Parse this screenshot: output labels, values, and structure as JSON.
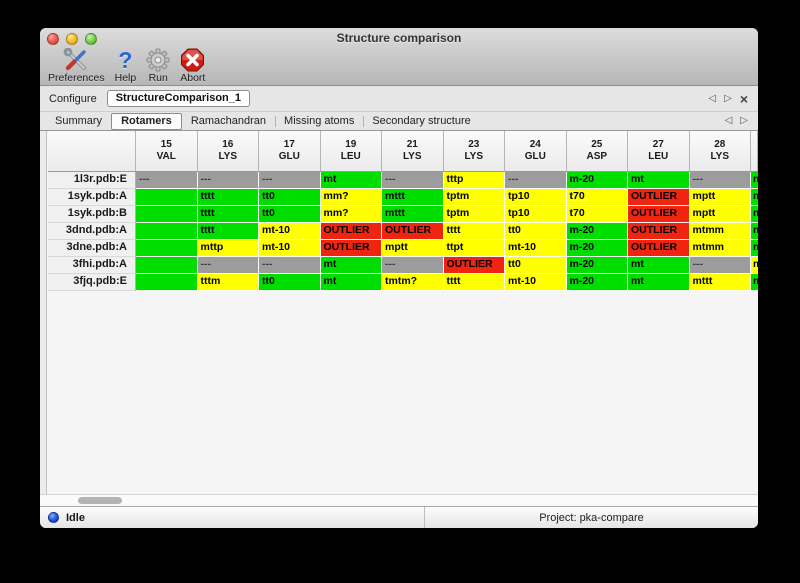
{
  "window": {
    "title": "Structure comparison"
  },
  "toolbar": {
    "items": [
      {
        "id": "preferences",
        "label": "Preferences",
        "icon": "tools-icon"
      },
      {
        "id": "help",
        "label": "Help",
        "icon": "help-icon"
      },
      {
        "id": "run",
        "label": "Run",
        "icon": "gear-icon"
      },
      {
        "id": "abort",
        "label": "Abort",
        "icon": "abort-icon"
      }
    ]
  },
  "configure": {
    "label": "Configure",
    "value": "StructureComparison_1",
    "prev": "◁",
    "next": "▷",
    "close": "×"
  },
  "tabs": {
    "active": "Rotamers",
    "items": [
      "Summary",
      "Rotamers",
      "Ramachandran",
      "Missing atoms",
      "Secondary structure"
    ],
    "prev": "◁",
    "next": "▷"
  },
  "colors": {
    "ok": "#00DE00",
    "warn": "#FFFF00",
    "outlier": "#EF2512",
    "none": "#9C9C9C"
  },
  "table": {
    "columns": [
      {
        "num": "15",
        "res": "VAL"
      },
      {
        "num": "16",
        "res": "LYS"
      },
      {
        "num": "17",
        "res": "GLU"
      },
      {
        "num": "19",
        "res": "LEU"
      },
      {
        "num": "21",
        "res": "LYS"
      },
      {
        "num": "23",
        "res": "LYS"
      },
      {
        "num": "24",
        "res": "GLU"
      },
      {
        "num": "25",
        "res": "ASP"
      },
      {
        "num": "27",
        "res": "LEU"
      },
      {
        "num": "28",
        "res": "LYS"
      }
    ],
    "rows": [
      {
        "label": "1l3r.pdb:E",
        "cells": [
          {
            "text": "---",
            "status": "none"
          },
          {
            "text": "---",
            "status": "none"
          },
          {
            "text": "---",
            "status": "none"
          },
          {
            "text": "mt",
            "status": "ok"
          },
          {
            "text": "---",
            "status": "none"
          },
          {
            "text": "tttp",
            "status": "warn"
          },
          {
            "text": "---",
            "status": "none"
          },
          {
            "text": "m-20",
            "status": "ok"
          },
          {
            "text": "mt",
            "status": "ok"
          },
          {
            "text": "---",
            "status": "none"
          }
        ],
        "partial": {
          "text": "m",
          "status": "ok"
        }
      },
      {
        "label": "1syk.pdb:A",
        "cells": [
          {
            "text": "",
            "status": "ok"
          },
          {
            "text": "tttt",
            "status": "ok"
          },
          {
            "text": "tt0",
            "status": "ok"
          },
          {
            "text": "mm?",
            "status": "warn"
          },
          {
            "text": "mttt",
            "status": "ok"
          },
          {
            "text": "tptm",
            "status": "warn"
          },
          {
            "text": "tp10",
            "status": "warn"
          },
          {
            "text": "t70",
            "status": "warn"
          },
          {
            "text": "OUTLIER",
            "status": "outlier"
          },
          {
            "text": "mptt",
            "status": "warn"
          }
        ],
        "partial": {
          "text": "m",
          "status": "ok"
        }
      },
      {
        "label": "1syk.pdb:B",
        "cells": [
          {
            "text": "",
            "status": "ok"
          },
          {
            "text": "tttt",
            "status": "ok"
          },
          {
            "text": "tt0",
            "status": "ok"
          },
          {
            "text": "mm?",
            "status": "warn"
          },
          {
            "text": "mttt",
            "status": "ok"
          },
          {
            "text": "tptm",
            "status": "warn"
          },
          {
            "text": "tp10",
            "status": "warn"
          },
          {
            "text": "t70",
            "status": "warn"
          },
          {
            "text": "OUTLIER",
            "status": "outlier"
          },
          {
            "text": "mptt",
            "status": "warn"
          }
        ],
        "partial": {
          "text": "m",
          "status": "ok"
        }
      },
      {
        "label": "3dnd.pdb:A",
        "cells": [
          {
            "text": "",
            "status": "ok"
          },
          {
            "text": "tttt",
            "status": "ok"
          },
          {
            "text": "mt-10",
            "status": "warn"
          },
          {
            "text": "OUTLIER",
            "status": "outlier"
          },
          {
            "text": "OUTLIER",
            "status": "outlier"
          },
          {
            "text": "tttt",
            "status": "warn"
          },
          {
            "text": "tt0",
            "status": "warn"
          },
          {
            "text": "m-20",
            "status": "ok"
          },
          {
            "text": "OUTLIER",
            "status": "outlier"
          },
          {
            "text": "mtmm",
            "status": "warn"
          }
        ],
        "partial": {
          "text": "m",
          "status": "ok"
        }
      },
      {
        "label": "3dne.pdb:A",
        "cells": [
          {
            "text": "",
            "status": "ok"
          },
          {
            "text": "mttp",
            "status": "warn"
          },
          {
            "text": "mt-10",
            "status": "warn"
          },
          {
            "text": "OUTLIER",
            "status": "outlier"
          },
          {
            "text": "mptt",
            "status": "warn"
          },
          {
            "text": "ttpt",
            "status": "warn"
          },
          {
            "text": "mt-10",
            "status": "warn"
          },
          {
            "text": "m-20",
            "status": "ok"
          },
          {
            "text": "OUTLIER",
            "status": "outlier"
          },
          {
            "text": "mtmm",
            "status": "warn"
          }
        ],
        "partial": {
          "text": "m",
          "status": "ok"
        }
      },
      {
        "label": "3fhi.pdb:A",
        "cells": [
          {
            "text": "",
            "status": "ok"
          },
          {
            "text": "---",
            "status": "none"
          },
          {
            "text": "---",
            "status": "none"
          },
          {
            "text": "mt",
            "status": "ok"
          },
          {
            "text": "---",
            "status": "none"
          },
          {
            "text": "OUTLIER",
            "status": "outlier"
          },
          {
            "text": "tt0",
            "status": "warn"
          },
          {
            "text": "m-20",
            "status": "ok"
          },
          {
            "text": "mt",
            "status": "ok"
          },
          {
            "text": "---",
            "status": "none"
          }
        ],
        "partial": {
          "text": "m",
          "status": "warn"
        }
      },
      {
        "label": "3fjq.pdb:E",
        "cells": [
          {
            "text": "",
            "status": "ok"
          },
          {
            "text": "tttm",
            "status": "warn"
          },
          {
            "text": "tt0",
            "status": "ok"
          },
          {
            "text": "mt",
            "status": "ok"
          },
          {
            "text": "tmtm?",
            "status": "warn"
          },
          {
            "text": "tttt",
            "status": "warn"
          },
          {
            "text": "mt-10",
            "status": "warn"
          },
          {
            "text": "m-20",
            "status": "ok"
          },
          {
            "text": "mt",
            "status": "ok"
          },
          {
            "text": "mttt",
            "status": "warn"
          }
        ],
        "partial": {
          "text": "m",
          "status": "ok"
        }
      }
    ]
  },
  "statusbar": {
    "state": "Idle",
    "project": "Project: pka-compare"
  }
}
